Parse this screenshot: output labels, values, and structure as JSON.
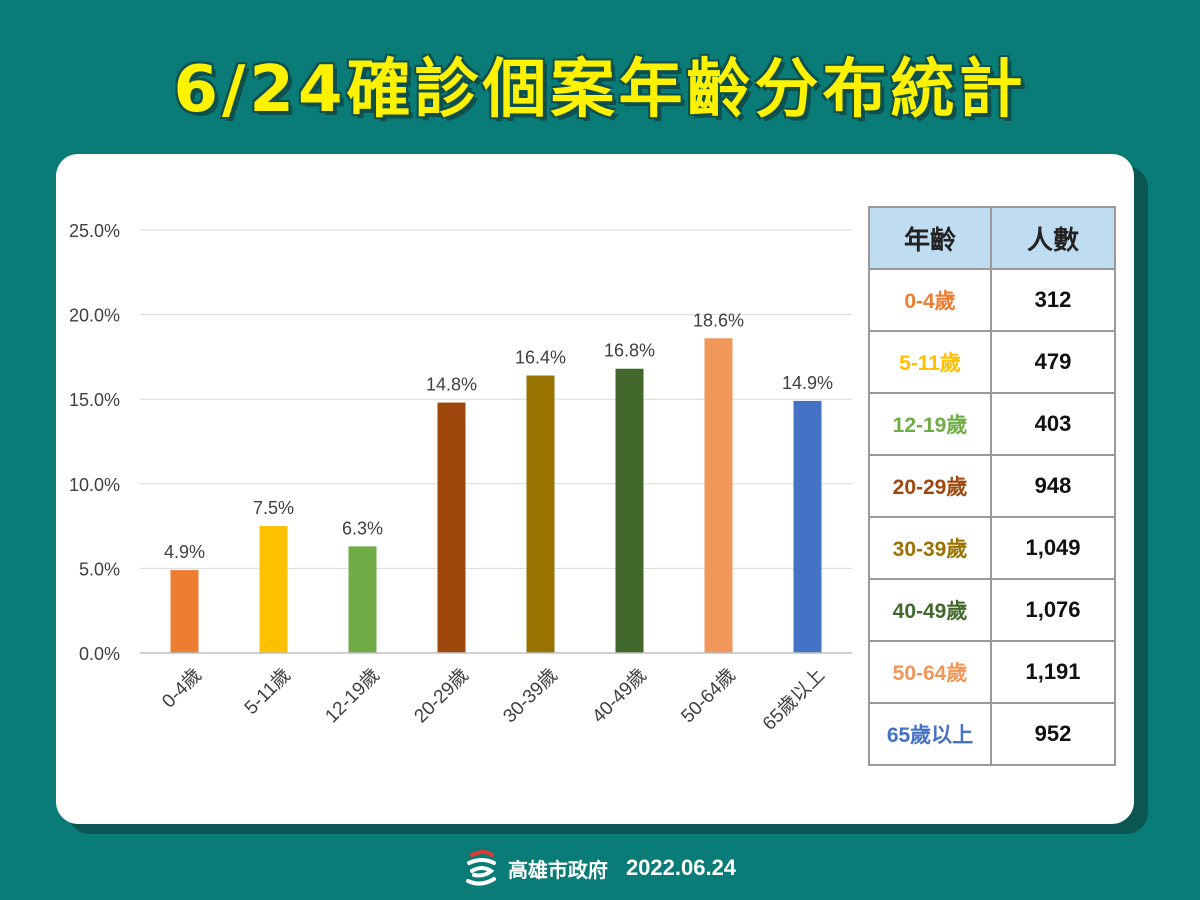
{
  "title": "6/24確診個案年齡分布統計",
  "chart_data": {
    "type": "bar",
    "categories": [
      "0-4歲",
      "5-11歲",
      "12-19歲",
      "20-29歲",
      "30-39歲",
      "40-49歲",
      "50-64歲",
      "65歲以上"
    ],
    "values": [
      4.9,
      7.5,
      6.3,
      14.8,
      16.4,
      16.8,
      18.6,
      14.9
    ],
    "data_labels": [
      "4.9%",
      "7.5%",
      "6.3%",
      "14.8%",
      "16.4%",
      "16.8%",
      "18.6%",
      "14.9%"
    ],
    "colors": [
      "#ed7d31",
      "#ffc000",
      "#70ad47",
      "#9e480e",
      "#997300",
      "#43682b",
      "#f1975a",
      "#4472c4"
    ],
    "ylim": [
      0,
      25
    ],
    "yticks": [
      0,
      5,
      10,
      15,
      20,
      25
    ],
    "ytick_labels": [
      "0.0%",
      "5.0%",
      "10.0%",
      "15.0%",
      "20.0%",
      "25.0%"
    ],
    "grid": true,
    "xlabel": "",
    "ylabel": ""
  },
  "table": {
    "headers": [
      "年齡",
      "人數"
    ],
    "rows": [
      {
        "age": "0-4歲",
        "count": "312",
        "color": "#ed7d31"
      },
      {
        "age": "5-11歲",
        "count": "479",
        "color": "#ffc000"
      },
      {
        "age": "12-19歲",
        "count": "403",
        "color": "#70ad47"
      },
      {
        "age": "20-29歲",
        "count": "948",
        "color": "#9e480e"
      },
      {
        "age": "30-39歲",
        "count": "1,049",
        "color": "#997300"
      },
      {
        "age": "40-49歲",
        "count": "1,076",
        "color": "#43682b"
      },
      {
        "age": "50-64歲",
        "count": "1,191",
        "color": "#f1975a"
      },
      {
        "age": "65歲以上",
        "count": "952",
        "color": "#4472c4"
      }
    ]
  },
  "footer": {
    "org": "高雄市政府",
    "date": "2022.06.24",
    "logo_icon": "kaohsiung-logo-icon"
  },
  "colors": {
    "background": "#0a7c78",
    "title": "#fff200",
    "header_fill": "#bfdcf0"
  }
}
